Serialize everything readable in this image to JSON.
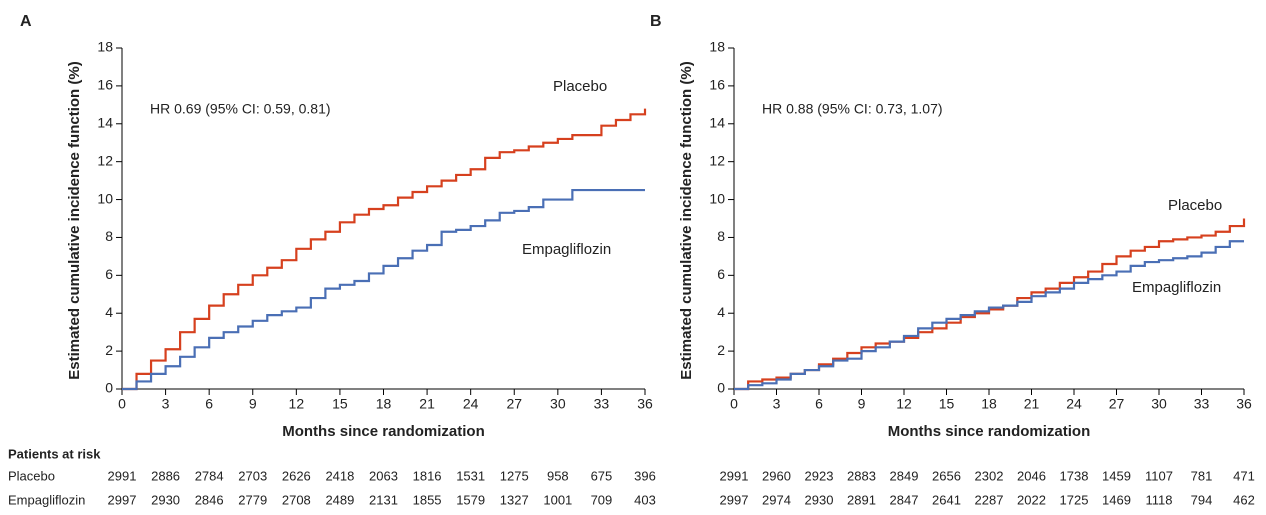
{
  "chart_data": [
    {
      "type": "line",
      "panel_label": "A",
      "annotation": "HR 0.69 (95% CI: 0.59, 0.81)",
      "xlabel": "Months since randomization",
      "ylabel": "Estimated cumulative incidence function (%)",
      "xlim": [
        0,
        36
      ],
      "ylim": [
        0,
        18
      ],
      "xticks": [
        0,
        3,
        6,
        9,
        12,
        15,
        18,
        21,
        24,
        27,
        30,
        33,
        36
      ],
      "yticks": [
        0,
        2,
        4,
        6,
        8,
        10,
        12,
        14,
        16,
        18
      ],
      "x": [
        0,
        1,
        2,
        3,
        4,
        5,
        6,
        7,
        8,
        9,
        10,
        11,
        12,
        13,
        14,
        15,
        16,
        17,
        18,
        19,
        20,
        21,
        22,
        23,
        24,
        25,
        26,
        27,
        28,
        29,
        30,
        31,
        32,
        33,
        34,
        35,
        36
      ],
      "series": [
        {
          "name": "Placebo",
          "color": "#d6401e",
          "values": [
            0,
            0.8,
            1.5,
            2.1,
            3.0,
            3.7,
            4.4,
            5.0,
            5.5,
            6.0,
            6.4,
            6.8,
            7.4,
            7.9,
            8.3,
            8.8,
            9.2,
            9.5,
            9.7,
            10.1,
            10.4,
            10.7,
            11.0,
            11.3,
            11.6,
            12.2,
            12.5,
            12.6,
            12.8,
            13.0,
            13.2,
            13.4,
            13.4,
            13.9,
            14.2,
            14.5,
            14.8
          ]
        },
        {
          "name": "Empagliflozin",
          "color": "#4a6fb5",
          "values": [
            0,
            0.4,
            0.8,
            1.2,
            1.7,
            2.2,
            2.7,
            3.0,
            3.3,
            3.6,
            3.9,
            4.1,
            4.3,
            4.8,
            5.3,
            5.5,
            5.7,
            6.1,
            6.5,
            6.9,
            7.3,
            7.6,
            8.3,
            8.4,
            8.6,
            8.9,
            9.3,
            9.4,
            9.6,
            10.0,
            10.0,
            10.5,
            10.5,
            10.5,
            10.5,
            10.5,
            10.5
          ]
        }
      ],
      "risk_table": {
        "title": "Patients at risk",
        "rows": [
          {
            "values": [
              2991,
              2886,
              2784,
              2703,
              2626,
              2418,
              2063,
              1816,
              1531,
              1275,
              958,
              675,
              396
            ]
          },
          {
            "values": [
              2997,
              2930,
              2846,
              2779,
              2708,
              2489,
              2131,
              1855,
              1579,
              1327,
              1001,
              709,
              403
            ]
          }
        ]
      }
    },
    {
      "type": "line",
      "panel_label": "B",
      "annotation": "HR 0.88 (95% CI: 0.73, 1.07)",
      "xlabel": "Months since randomization",
      "ylabel": "Estimated cumulative incidence function (%)",
      "xlim": [
        0,
        36
      ],
      "ylim": [
        0,
        18
      ],
      "xticks": [
        0,
        3,
        6,
        9,
        12,
        15,
        18,
        21,
        24,
        27,
        30,
        33,
        36
      ],
      "yticks": [
        0,
        2,
        4,
        6,
        8,
        10,
        12,
        14,
        16,
        18
      ],
      "x": [
        0,
        1,
        2,
        3,
        4,
        5,
        6,
        7,
        8,
        9,
        10,
        11,
        12,
        13,
        14,
        15,
        16,
        17,
        18,
        19,
        20,
        21,
        22,
        23,
        24,
        25,
        26,
        27,
        28,
        29,
        30,
        31,
        32,
        33,
        34,
        35,
        36
      ],
      "series": [
        {
          "name": "Placebo",
          "color": "#d6401e",
          "values": [
            0,
            0.4,
            0.5,
            0.6,
            0.8,
            1.0,
            1.3,
            1.6,
            1.9,
            2.2,
            2.4,
            2.5,
            2.7,
            3.0,
            3.2,
            3.5,
            3.8,
            4.0,
            4.2,
            4.4,
            4.8,
            5.1,
            5.3,
            5.6,
            5.9,
            6.2,
            6.6,
            7.0,
            7.3,
            7.5,
            7.8,
            7.9,
            8.0,
            8.1,
            8.3,
            8.6,
            9.0
          ]
        },
        {
          "name": "Empagliflozin",
          "color": "#4a6fb5",
          "values": [
            0,
            0.2,
            0.3,
            0.5,
            0.8,
            1.0,
            1.2,
            1.5,
            1.6,
            2.0,
            2.2,
            2.5,
            2.8,
            3.2,
            3.5,
            3.7,
            3.9,
            4.1,
            4.3,
            4.4,
            4.6,
            4.9,
            5.1,
            5.3,
            5.6,
            5.8,
            6.0,
            6.2,
            6.5,
            6.7,
            6.8,
            6.9,
            7.0,
            7.2,
            7.5,
            7.8,
            7.8
          ]
        }
      ],
      "risk_table": {
        "rows": [
          {
            "values": [
              2991,
              2960,
              2923,
              2883,
              2849,
              2656,
              2302,
              2046,
              1738,
              1459,
              1107,
              781,
              471
            ]
          },
          {
            "values": [
              2997,
              2974,
              2930,
              2891,
              2847,
              2641,
              2287,
              2022,
              1725,
              1469,
              1118,
              794,
              462
            ]
          }
        ]
      }
    }
  ]
}
